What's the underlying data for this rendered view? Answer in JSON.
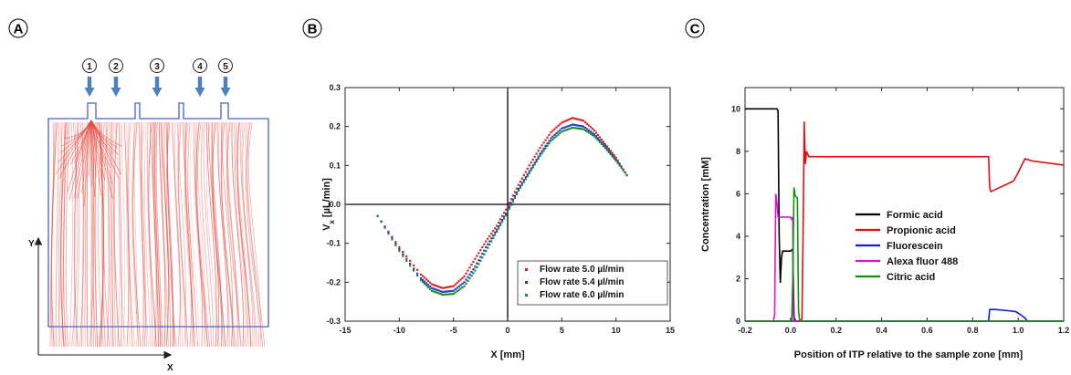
{
  "panels": {
    "a": {
      "label": "A",
      "inlets": [
        "1",
        "2",
        "3",
        "4",
        "5"
      ],
      "axis_x_label": "X",
      "axis_y_label": "Y",
      "colors": {
        "streamlines": "#e4453c",
        "outline": "#4a62c8",
        "arrows": "#4f7fbf"
      }
    },
    "b": {
      "label": "B"
    },
    "c": {
      "label": "C"
    }
  },
  "chart_data": [
    {
      "panel": "B",
      "type": "scatter",
      "xlabel": "X [mm]",
      "ylabel_main": "V",
      "ylabel_sub": "x",
      "ylabel_rest": " [µL/min]",
      "xlim": [
        -15,
        15
      ],
      "ylim": [
        -0.3,
        0.3
      ],
      "xticks": [
        -15,
        -10,
        -5,
        0,
        5,
        10,
        15
      ],
      "yticks": [
        -0.3,
        -0.2,
        -0.1,
        0.0,
        0.1,
        0.2,
        0.3
      ],
      "xtick_labels": [
        "-15",
        "-10",
        "-5",
        "0",
        "5",
        "10",
        "15"
      ],
      "ytick_labels": [
        "-0.3",
        "-0.2",
        "-0.1",
        "0.0",
        "0.1",
        "0.2",
        "0.3"
      ],
      "legend_position": "bottom-right",
      "series": [
        {
          "name": "Flow rate 5.0 µl/min",
          "color": "#e02020",
          "x": [
            -12,
            -10,
            -8,
            -7,
            -6,
            -5,
            -4,
            -3,
            -2,
            -1,
            0,
            1,
            2,
            3,
            4,
            5,
            6,
            7,
            8,
            9,
            10,
            11
          ],
          "y": [
            -0.03,
            -0.11,
            -0.18,
            -0.205,
            -0.215,
            -0.21,
            -0.185,
            -0.14,
            -0.095,
            -0.055,
            -0.005,
            0.05,
            0.1,
            0.145,
            0.185,
            0.21,
            0.222,
            0.215,
            0.19,
            0.155,
            0.12,
            0.075
          ]
        },
        {
          "name": "Flow rate 5.4 µl/min",
          "color": "#1f3fd0",
          "x": [
            -12,
            -10,
            -8,
            -7,
            -6,
            -5,
            -4,
            -3,
            -2,
            -1,
            0,
            1,
            2,
            3,
            4,
            5,
            6,
            7,
            8,
            9,
            10,
            11
          ],
          "y": [
            -0.03,
            -0.115,
            -0.19,
            -0.215,
            -0.225,
            -0.222,
            -0.2,
            -0.16,
            -0.11,
            -0.065,
            -0.015,
            0.04,
            0.085,
            0.13,
            0.17,
            0.195,
            0.205,
            0.2,
            0.18,
            0.15,
            0.115,
            0.075
          ]
        },
        {
          "name": "Flow rate 6.0 µl/min",
          "color": "#1f8a2a",
          "x": [
            -12,
            -10,
            -8,
            -7,
            -6,
            -5,
            -4,
            -3,
            -2,
            -1,
            0,
            1,
            2,
            3,
            4,
            5,
            6,
            7,
            8,
            9,
            10,
            11
          ],
          "y": [
            -0.03,
            -0.12,
            -0.195,
            -0.222,
            -0.232,
            -0.23,
            -0.21,
            -0.17,
            -0.12,
            -0.07,
            -0.02,
            0.035,
            0.08,
            0.125,
            0.163,
            0.187,
            0.197,
            0.193,
            0.175,
            0.145,
            0.112,
            0.075
          ]
        }
      ]
    },
    {
      "panel": "C",
      "type": "line",
      "xlabel": "Position of ITP relative to the sample zone [mm]",
      "ylabel": "Concentration [mM]",
      "xlim": [
        -0.2,
        1.2
      ],
      "ylim": [
        0,
        11
      ],
      "xticks": [
        -0.2,
        0.0,
        0.2,
        0.4,
        0.6,
        0.8,
        1.0,
        1.2
      ],
      "yticks": [
        0,
        2,
        4,
        6,
        8,
        10
      ],
      "xtick_labels": [
        "-0.2",
        "0.0",
        "0.2",
        "0.4",
        "0.6",
        "0.8",
        "1.0",
        "1.2"
      ],
      "ytick_labels": [
        "0",
        "2",
        "4",
        "6",
        "8",
        "10"
      ],
      "legend_position": "center",
      "series": [
        {
          "name": "Formic acid",
          "color": "#000000",
          "x": [
            -0.2,
            -0.06,
            -0.055,
            -0.05,
            -0.045,
            -0.04,
            -0.035,
            0.0,
            0.01,
            0.015,
            0.02,
            0.025,
            1.2
          ],
          "y": [
            10.0,
            10.0,
            9.9,
            4.0,
            1.8,
            3.0,
            3.3,
            3.3,
            3.4,
            0.2,
            0.05,
            0.0,
            0.0
          ]
        },
        {
          "name": "Propionic acid",
          "color": "#e01010",
          "x": [
            -0.2,
            0.04,
            0.05,
            0.055,
            0.06,
            0.065,
            0.07,
            0.08,
            0.87,
            0.875,
            0.88,
            0.98,
            1.0,
            1.03,
            1.06,
            1.2
          ],
          "y": [
            0.0,
            0.0,
            0.1,
            4.0,
            9.4,
            7.4,
            8.0,
            7.75,
            7.75,
            6.3,
            6.1,
            6.6,
            7.0,
            7.65,
            7.55,
            7.35
          ]
        },
        {
          "name": "Fluorescein",
          "color": "#1020d0",
          "x": [
            -0.2,
            0.87,
            0.875,
            0.9,
            0.95,
            0.99,
            1.0,
            1.03,
            1.04,
            1.2
          ],
          "y": [
            0.0,
            0.0,
            0.55,
            0.55,
            0.5,
            0.45,
            0.38,
            0.15,
            0.0,
            0.0
          ]
        },
        {
          "name": "Alexa fluor 488",
          "color": "#e010e0",
          "x": [
            -0.2,
            -0.075,
            -0.07,
            -0.065,
            -0.06,
            -0.055,
            0.0,
            0.005,
            0.01,
            0.012,
            0.015,
            1.2
          ],
          "y": [
            0.0,
            0.0,
            0.3,
            6.0,
            5.6,
            4.9,
            4.9,
            4.8,
            4.9,
            0.3,
            0.0,
            0.0
          ]
        },
        {
          "name": "Citric acid",
          "color": "#109010",
          "x": [
            -0.2,
            0.005,
            0.01,
            0.015,
            0.02,
            0.03,
            0.035,
            0.04,
            1.2
          ],
          "y": [
            0.0,
            0.0,
            2.0,
            6.3,
            5.9,
            5.8,
            0.5,
            0.0,
            0.0
          ]
        }
      ]
    }
  ]
}
